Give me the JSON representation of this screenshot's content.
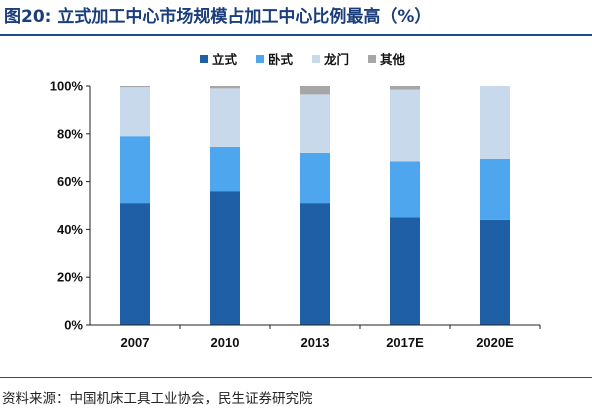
{
  "title": "图20: 立式加工中心市场规模占加工中心比例最高（%）",
  "source": "资料来源：中国机床工具工业协会，民生证券研究院",
  "chart_data": {
    "type": "bar",
    "stacked": true,
    "categories": [
      "2007",
      "2010",
      "2013",
      "2017E",
      "2020E"
    ],
    "series": [
      {
        "name": "立式",
        "color": "#1f5fa6",
        "values": [
          51,
          56,
          51,
          45,
          44
        ]
      },
      {
        "name": "卧式",
        "color": "#4da6ee",
        "values": [
          28,
          18.5,
          21,
          23.5,
          25.5
        ]
      },
      {
        "name": "龙门",
        "color": "#c9d9ec",
        "values": [
          20.5,
          24.5,
          24.5,
          30,
          30.5
        ]
      },
      {
        "name": "其他",
        "color": "#a6a6a6",
        "values": [
          0.5,
          1,
          3.5,
          1.5,
          0
        ]
      }
    ],
    "ylim": [
      0,
      100
    ],
    "yticks": [
      "0%",
      "20%",
      "40%",
      "60%",
      "80%",
      "100%"
    ],
    "legend_position": "top",
    "grid": false
  }
}
